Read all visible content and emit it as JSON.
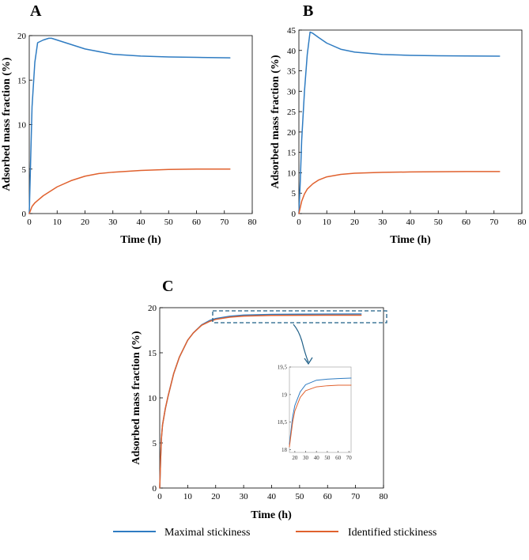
{
  "colors": {
    "maximal": "#2f7cc2",
    "identified": "#e0612e",
    "axis": "#000000",
    "zoom_box": "#1f5f87"
  },
  "legend": {
    "maximal_label": "Maximal stickiness",
    "identified_label": "Identified stickiness"
  },
  "chart_data": [
    {
      "panel": "A",
      "type": "line",
      "xlabel": "Time (h)",
      "ylabel": "Adsorbed mass fraction (%)",
      "xlim": [
        0,
        80
      ],
      "ylim": [
        0,
        20
      ],
      "xticks": [
        0,
        10,
        20,
        30,
        40,
        50,
        60,
        70,
        80
      ],
      "yticks": [
        0,
        5,
        10,
        15,
        20
      ],
      "series": [
        {
          "name": "Maximal stickiness",
          "x": [
            0,
            0.5,
            1,
            2,
            3,
            5,
            7,
            8,
            10,
            15,
            20,
            30,
            40,
            50,
            60,
            72
          ],
          "y": [
            0,
            6,
            12,
            17,
            19.2,
            19.5,
            19.7,
            19.7,
            19.5,
            19,
            18.5,
            17.9,
            17.7,
            17.6,
            17.55,
            17.5
          ]
        },
        {
          "name": "Identified stickiness",
          "x": [
            0,
            0.5,
            1,
            2,
            5,
            10,
            15,
            20,
            25,
            30,
            40,
            50,
            60,
            72
          ],
          "y": [
            0,
            0.4,
            0.8,
            1.2,
            2,
            3,
            3.7,
            4.2,
            4.5,
            4.65,
            4.85,
            4.95,
            5,
            5
          ]
        }
      ]
    },
    {
      "panel": "B",
      "type": "line",
      "xlabel": "Time (h)",
      "ylabel": "Adsorbed mass fraction (%)",
      "xlim": [
        0,
        80
      ],
      "ylim": [
        0,
        45
      ],
      "xticks": [
        0,
        10,
        20,
        30,
        40,
        50,
        60,
        70,
        80
      ],
      "yticks": [
        0,
        5,
        10,
        15,
        20,
        25,
        30,
        35,
        40,
        45
      ],
      "series": [
        {
          "name": "Maximal stickiness",
          "x": [
            0,
            0.5,
            1,
            2,
            3,
            4,
            5,
            7,
            10,
            15,
            20,
            30,
            40,
            50,
            60,
            72
          ],
          "y": [
            0,
            8,
            18,
            30,
            39,
            44.5,
            44.2,
            43.2,
            41.8,
            40.3,
            39.6,
            39,
            38.8,
            38.7,
            38.65,
            38.6
          ]
        },
        {
          "name": "Identified stickiness",
          "x": [
            0,
            0.5,
            1,
            2,
            3,
            5,
            7,
            10,
            15,
            20,
            30,
            40,
            50,
            60,
            72
          ],
          "y": [
            0,
            1.5,
            3,
            4.8,
            6,
            7.3,
            8.2,
            9,
            9.6,
            9.9,
            10.1,
            10.2,
            10.25,
            10.3,
            10.3
          ]
        }
      ]
    },
    {
      "panel": "C",
      "type": "line",
      "xlabel": "Time (h)",
      "ylabel": "Adsorbed mass fraction (%)",
      "xlim": [
        0,
        80
      ],
      "ylim": [
        0,
        20
      ],
      "xticks": [
        0,
        10,
        20,
        30,
        40,
        50,
        60,
        70,
        80
      ],
      "yticks": [
        0,
        5,
        10,
        15,
        20
      ],
      "series": [
        {
          "name": "Maximal stickiness",
          "x": [
            0,
            0.3,
            0.6,
            1,
            2,
            3,
            5,
            7,
            10,
            12,
            15,
            18,
            20,
            25,
            30,
            40,
            50,
            60,
            72
          ],
          "y": [
            0,
            3,
            5.5,
            7,
            8.8,
            10.2,
            12.7,
            14.5,
            16.4,
            17.2,
            18.1,
            18.6,
            18.8,
            19.05,
            19.18,
            19.26,
            19.28,
            19.29,
            19.3
          ]
        },
        {
          "name": "Identified stickiness",
          "x": [
            0,
            0.3,
            0.6,
            1,
            2,
            3,
            5,
            7,
            10,
            12,
            15,
            18,
            20,
            25,
            30,
            40,
            50,
            60,
            72
          ],
          "y": [
            0,
            3,
            5.5,
            7,
            8.8,
            10.2,
            12.7,
            14.5,
            16.4,
            17.2,
            18.05,
            18.5,
            18.7,
            18.95,
            19.07,
            19.14,
            19.16,
            19.17,
            19.17
          ]
        }
      ],
      "inset": {
        "xlim": [
          15,
          72
        ],
        "ylim": [
          17.95,
          19.5
        ],
        "xticks": [
          20,
          30,
          40,
          50,
          60,
          70
        ],
        "yticks": [
          18,
          18.5,
          19,
          19.5
        ],
        "ytick_labels": [
          "18",
          "18,5",
          "19",
          "19,5"
        ]
      }
    }
  ]
}
